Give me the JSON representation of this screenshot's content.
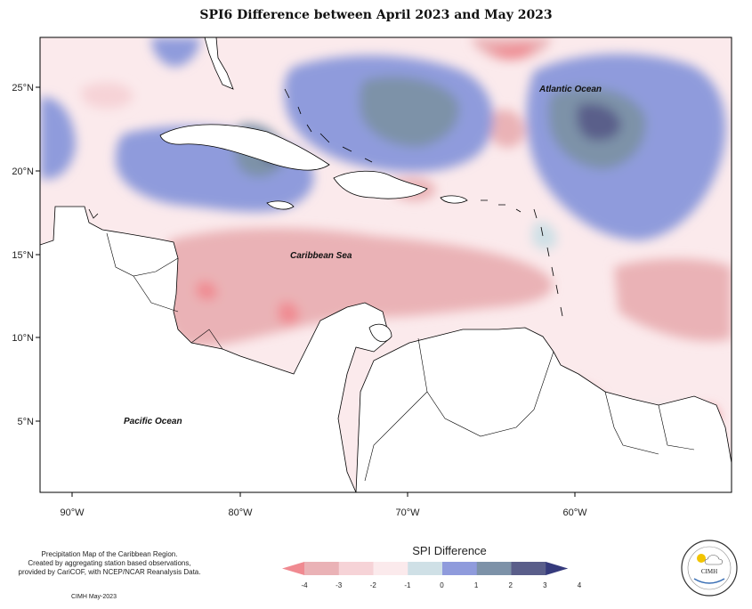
{
  "title": "SPI6 Difference between April 2023 and May 2023",
  "latitude_labels": [
    "25°N",
    "20°N",
    "15°N",
    "10°N",
    "5°N"
  ],
  "longitude_labels": [
    "90°W",
    "80°W",
    "70°W",
    "60°W"
  ],
  "ocean_labels": {
    "atlantic": "Atlantic Ocean",
    "caribbean": "Caribbean Sea",
    "pacific": "Pacific Ocean"
  },
  "legend": {
    "title": "SPI Difference",
    "ticks": [
      "-4",
      "-3",
      "-2",
      "-1",
      "0",
      "1",
      "2",
      "3",
      "4"
    ],
    "colors": [
      "#f08a91",
      "#eab2b6",
      "#f6d3d7",
      "#fbeaec",
      "#cfe0e6",
      "#8f9bdc",
      "#7d92a8",
      "#5a5e8a",
      "#353a7c"
    ]
  },
  "footnote": {
    "line1": "Precipitation Map of the Caribbean Region.",
    "line2": "Created by aggregating station based observations,",
    "line3": "provided by CariCOF, with NCEP/NCAR Reanalysis Data.",
    "credit": "CIMH May-2023"
  },
  "logo": {
    "text": "CIMH"
  }
}
